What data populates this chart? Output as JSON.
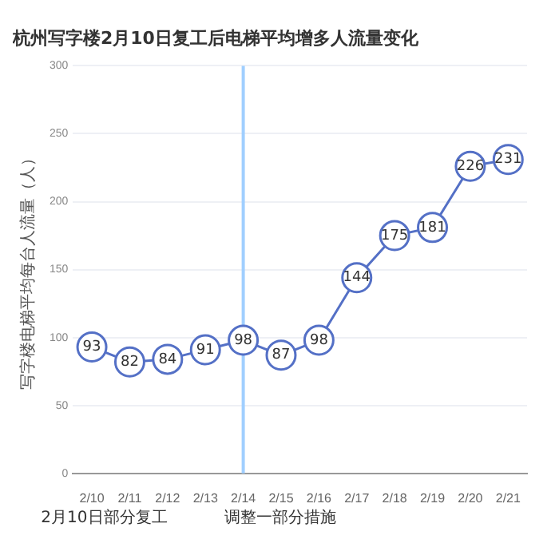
{
  "chart_data": {
    "type": "line",
    "title": "杭州写字楼2月10日复工后电梯平均增多人流量变化",
    "ylabel": "写字楼电梯平均每台人流量（人）",
    "categories": [
      "2/10",
      "2/11",
      "2/12",
      "2/13",
      "2/14",
      "2/15",
      "2/16",
      "2/17",
      "2/18",
      "2/19",
      "2/20",
      "2/21"
    ],
    "series": [
      {
        "color": "#5470c6",
        "values": [
          93,
          82,
          84,
          91,
          98,
          87,
          98,
          144,
          175,
          181,
          226,
          231
        ]
      }
    ],
    "ylim": [
      0,
      300
    ],
    "yticks": [
      0,
      50,
      100,
      150,
      200,
      250,
      300
    ],
    "grid": "y",
    "legend": false,
    "marker": "circle",
    "line_style": "solid",
    "data_labels": true,
    "ref_lines": [
      {
        "axis": "x",
        "value": "2/14",
        "color": "#a0cfff"
      }
    ],
    "annotations": [
      "2月10日部分复工",
      "调整一部分措施"
    ]
  }
}
